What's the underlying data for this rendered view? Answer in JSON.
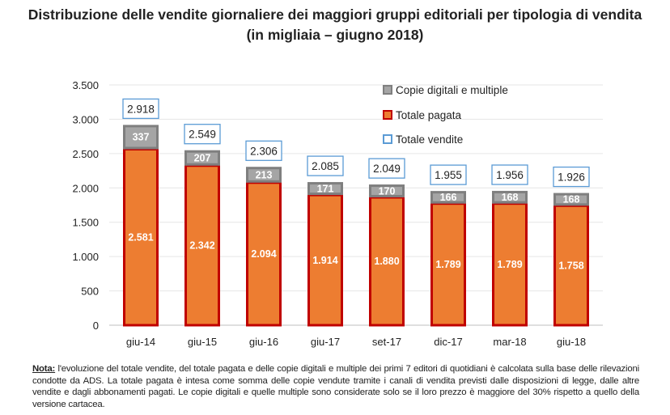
{
  "title_line1": "Distribuzione delle vendite giornaliere dei maggiori gruppi editoriali per tipologia di vendita",
  "title_line2": "(in migliaia – giugno 2018)",
  "note_label": "Nota:",
  "note_text": " l'evoluzione del totale vendite, del totale pagata e delle copie digitali e multiple dei primi 7 editori di quotidiani è calcolata sulla base delle rilevazioni condotte da ADS. La totale pagata è intesa come somma delle copie vendute tramite i canali di vendita previsti dalle disposizioni di legge, dalle altre vendite e dagli abbonamenti pagati. Le copie digitali e quelle multiple sono considerate solo se il loro prezzo è maggiore del 30% rispetto a quello della versione cartacea.",
  "chart_data": {
    "type": "bar",
    "stacked": true,
    "categories": [
      "giu-14",
      "giu-15",
      "giu-16",
      "giu-17",
      "set-17",
      "dic-17",
      "mar-18",
      "giu-18"
    ],
    "series": [
      {
        "name": "Totale pagata",
        "values": [
          2581,
          2342,
          2094,
          1914,
          1880,
          1789,
          1789,
          1758
        ],
        "color": "#ED7D31",
        "border": "#C00000",
        "labels": [
          "2.581",
          "2.342",
          "2.094",
          "1.914",
          "1.880",
          "1.789",
          "1.789",
          "1.758"
        ]
      },
      {
        "name": "Copie digitali e multiple",
        "values": [
          337,
          207,
          213,
          171,
          170,
          166,
          168,
          168
        ],
        "color": "#A5A5A5",
        "border": "#7F7F7F",
        "labels": [
          "337",
          "207",
          "213",
          "171",
          "170",
          "166",
          "168",
          "168"
        ]
      }
    ],
    "totals": {
      "name": "Totale vendite",
      "values": [
        2918,
        2549,
        2306,
        2085,
        2049,
        1955,
        1956,
        1926
      ],
      "labels": [
        "2.918",
        "2.549",
        "2.306",
        "2.085",
        "2.049",
        "1.955",
        "1.956",
        "1.926"
      ],
      "color": "#5B9BD5"
    },
    "ylim": [
      0,
      3500
    ],
    "yticks": [
      0,
      500,
      1000,
      1500,
      2000,
      2500,
      3000,
      3500
    ],
    "ytick_labels": [
      "0",
      "500",
      "1.000",
      "1.500",
      "2.000",
      "2.500",
      "3.000",
      "3.500"
    ],
    "grid": true,
    "legend_position": "top-right",
    "legend": [
      "Copie digitali e multiple",
      "Totale pagata",
      "Totale vendite"
    ]
  }
}
